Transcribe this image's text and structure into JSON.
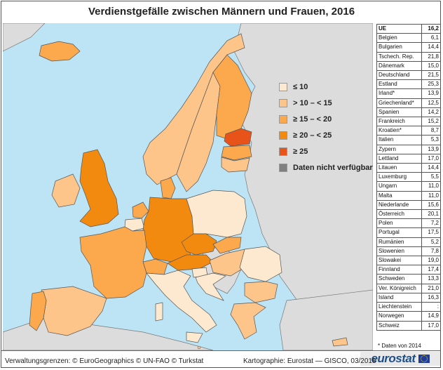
{
  "title": "Verdienstgefälle zwischen Männern und Frauen, 2016",
  "legend": [
    {
      "label": "≤ 10",
      "color": "#fde9cf"
    },
    {
      "label": "> 10 – < 15",
      "color": "#fdc58a"
    },
    {
      "label": "≥ 15 – < 20",
      "color": "#fca84c"
    },
    {
      "label": "≥ 20 – < 25",
      "color": "#f28a10"
    },
    {
      "label": "≥ 25",
      "color": "#e8531a"
    },
    {
      "label": "Daten nicht verfügbar",
      "color": "#808080"
    }
  ],
  "colors": {
    "sea": "#bde4f4",
    "nondata_land": "#dcdcdc",
    "border": "#555555"
  },
  "table_header": {
    "label": "UE",
    "value": "16,2"
  },
  "table_rows": [
    {
      "label": "Belgien",
      "value": "6,1"
    },
    {
      "label": "Bulgarien",
      "value": "14,4"
    },
    {
      "label": "Tschech. Rep.",
      "value": "21,8"
    },
    {
      "label": "Dänemark",
      "value": "15,0"
    },
    {
      "label": "Deutschland",
      "value": "21,5"
    },
    {
      "label": "Estland",
      "value": "25,3"
    },
    {
      "label": "Irland*",
      "value": "13,9"
    },
    {
      "label": "Griechenland*",
      "value": "12,5"
    },
    {
      "label": "Spanien",
      "value": "14,2"
    },
    {
      "label": "Frankreich",
      "value": "15,2"
    },
    {
      "label": "Kroatien*",
      "value": "8,7"
    },
    {
      "label": "Italien",
      "value": "5,3"
    },
    {
      "label": "Zypern",
      "value": "13,9"
    },
    {
      "label": "Lettland",
      "value": "17,0"
    },
    {
      "label": "Litauen",
      "value": "14,4"
    },
    {
      "label": "Luxemburg",
      "value": "5,5"
    },
    {
      "label": "Ungarn",
      "value": "11,0"
    },
    {
      "label": "Malta",
      "value": "11,0"
    },
    {
      "label": "Niederlande",
      "value": "15,6"
    },
    {
      "label": "Österreich",
      "value": "20,1"
    },
    {
      "label": "Polen",
      "value": "7,2"
    },
    {
      "label": "Portugal",
      "value": "17,5"
    },
    {
      "label": "Rumänien",
      "value": "5,2"
    },
    {
      "label": "Slowenien",
      "value": "7,8"
    },
    {
      "label": "Slowakei",
      "value": "19,0"
    },
    {
      "label": "Finnland",
      "value": "17,4"
    },
    {
      "label": "Schweden",
      "value": "13,3"
    },
    {
      "label": "Ver. Königreich",
      "value": "21,0"
    },
    {
      "label": "Island",
      "value": "16,3"
    },
    {
      "label": "Liechtenstein",
      "value": ":"
    },
    {
      "label": "Norwegen",
      "value": "14,9"
    },
    {
      "label": "Schweiz",
      "value": "17,0"
    }
  ],
  "footnote": "* Daten von 2014",
  "logo_text": "eurostat",
  "footer_left": "Verwaltungsgrenzen: © EuroGeographics © UN-FAO © Turkstat",
  "footer_right": "Kartographie: Eurostat — GISCO, 03/2018"
}
